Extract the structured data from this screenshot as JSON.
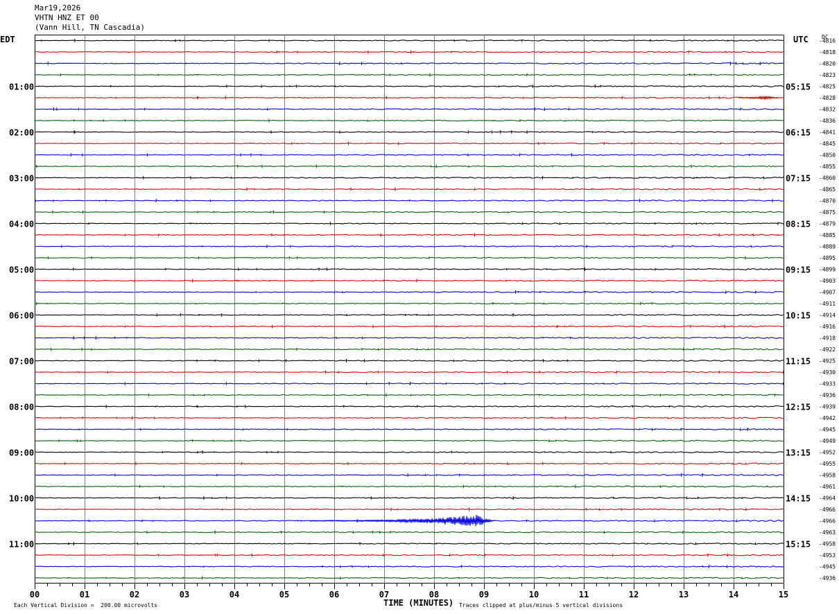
{
  "header": {
    "date": "Mar19,2026",
    "station": "VHTN HNZ ET 00",
    "location": "(Vann Hill, TN Cascadia)"
  },
  "chart_data": {
    "type": "line",
    "title": "VHTN HNZ ET 00",
    "left_axis_title": "EDT",
    "right_axis_title": "UTC",
    "dc_title": "DC",
    "xlabel": "TIME (MINUTES)",
    "xlim": [
      0,
      15
    ],
    "x_ticks": [
      "00",
      "01",
      "02",
      "03",
      "04",
      "05",
      "06",
      "07",
      "08",
      "09",
      "10",
      "11",
      "12",
      "13",
      "14",
      "15"
    ],
    "trace_count": 48,
    "trace_minutes": 15,
    "trace_colors": [
      "#000000",
      "#e00000",
      "#0000e0",
      "#006400"
    ],
    "left_labels": [
      {
        "trace": 4,
        "text": "01:00"
      },
      {
        "trace": 8,
        "text": "02:00"
      },
      {
        "trace": 12,
        "text": "03:00"
      },
      {
        "trace": 16,
        "text": "04:00"
      },
      {
        "trace": 20,
        "text": "05:00"
      },
      {
        "trace": 24,
        "text": "06:00"
      },
      {
        "trace": 28,
        "text": "07:00"
      },
      {
        "trace": 32,
        "text": "08:00"
      },
      {
        "trace": 36,
        "text": "09:00"
      },
      {
        "trace": 40,
        "text": "10:00"
      },
      {
        "trace": 44,
        "text": "11:00"
      }
    ],
    "right_labels": [
      {
        "trace": 4,
        "text": "05:15"
      },
      {
        "trace": 8,
        "text": "06:15"
      },
      {
        "trace": 12,
        "text": "07:15"
      },
      {
        "trace": 16,
        "text": "08:15"
      },
      {
        "trace": 20,
        "text": "09:15"
      },
      {
        "trace": 24,
        "text": "10:15"
      },
      {
        "trace": 28,
        "text": "11:15"
      },
      {
        "trace": 32,
        "text": "12:15"
      },
      {
        "trace": 36,
        "text": "13:15"
      },
      {
        "trace": 40,
        "text": "14:15"
      },
      {
        "trace": 44,
        "text": "15:15"
      }
    ],
    "dc_offsets": [
      "-4816",
      "-4818",
      "-4820",
      "-4823",
      "-4825",
      "-4828",
      "-4832",
      "-4836",
      "-4841",
      "-4845",
      "-4850",
      "-4855",
      "-4860",
      "-4865",
      "-4870",
      "-4875",
      "-4879",
      "-4885",
      "-4889",
      "-4895",
      "-4899",
      "-4903",
      "-4907",
      "-4911",
      "-4914",
      "-4916",
      "-4918",
      "-4922",
      "-4925",
      "-4930",
      "-4933",
      "-4936",
      "-4939",
      "-4942",
      "-4945",
      "-4949",
      "-4952",
      "-4955",
      "-4958",
      "-4961",
      "-4964",
      "-4966",
      "-4966",
      "-4963",
      "-4958",
      "-4953",
      "-4945",
      "-4936"
    ],
    "events": [
      {
        "trace": 42,
        "start_min": 5.5,
        "peak_min": 8.85,
        "end_min": 9.2,
        "peak_divisions": 0.55
      },
      {
        "trace": 5,
        "start_min": 14.1,
        "peak_min": 14.6,
        "end_min": 14.9,
        "peak_divisions": 0.15
      }
    ],
    "footer": {
      "scale_note": "Each Vertical Division =  200.00 microvolts",
      "clip_note": "Traces clipped at plus/minus 5 vertical divisions"
    }
  }
}
